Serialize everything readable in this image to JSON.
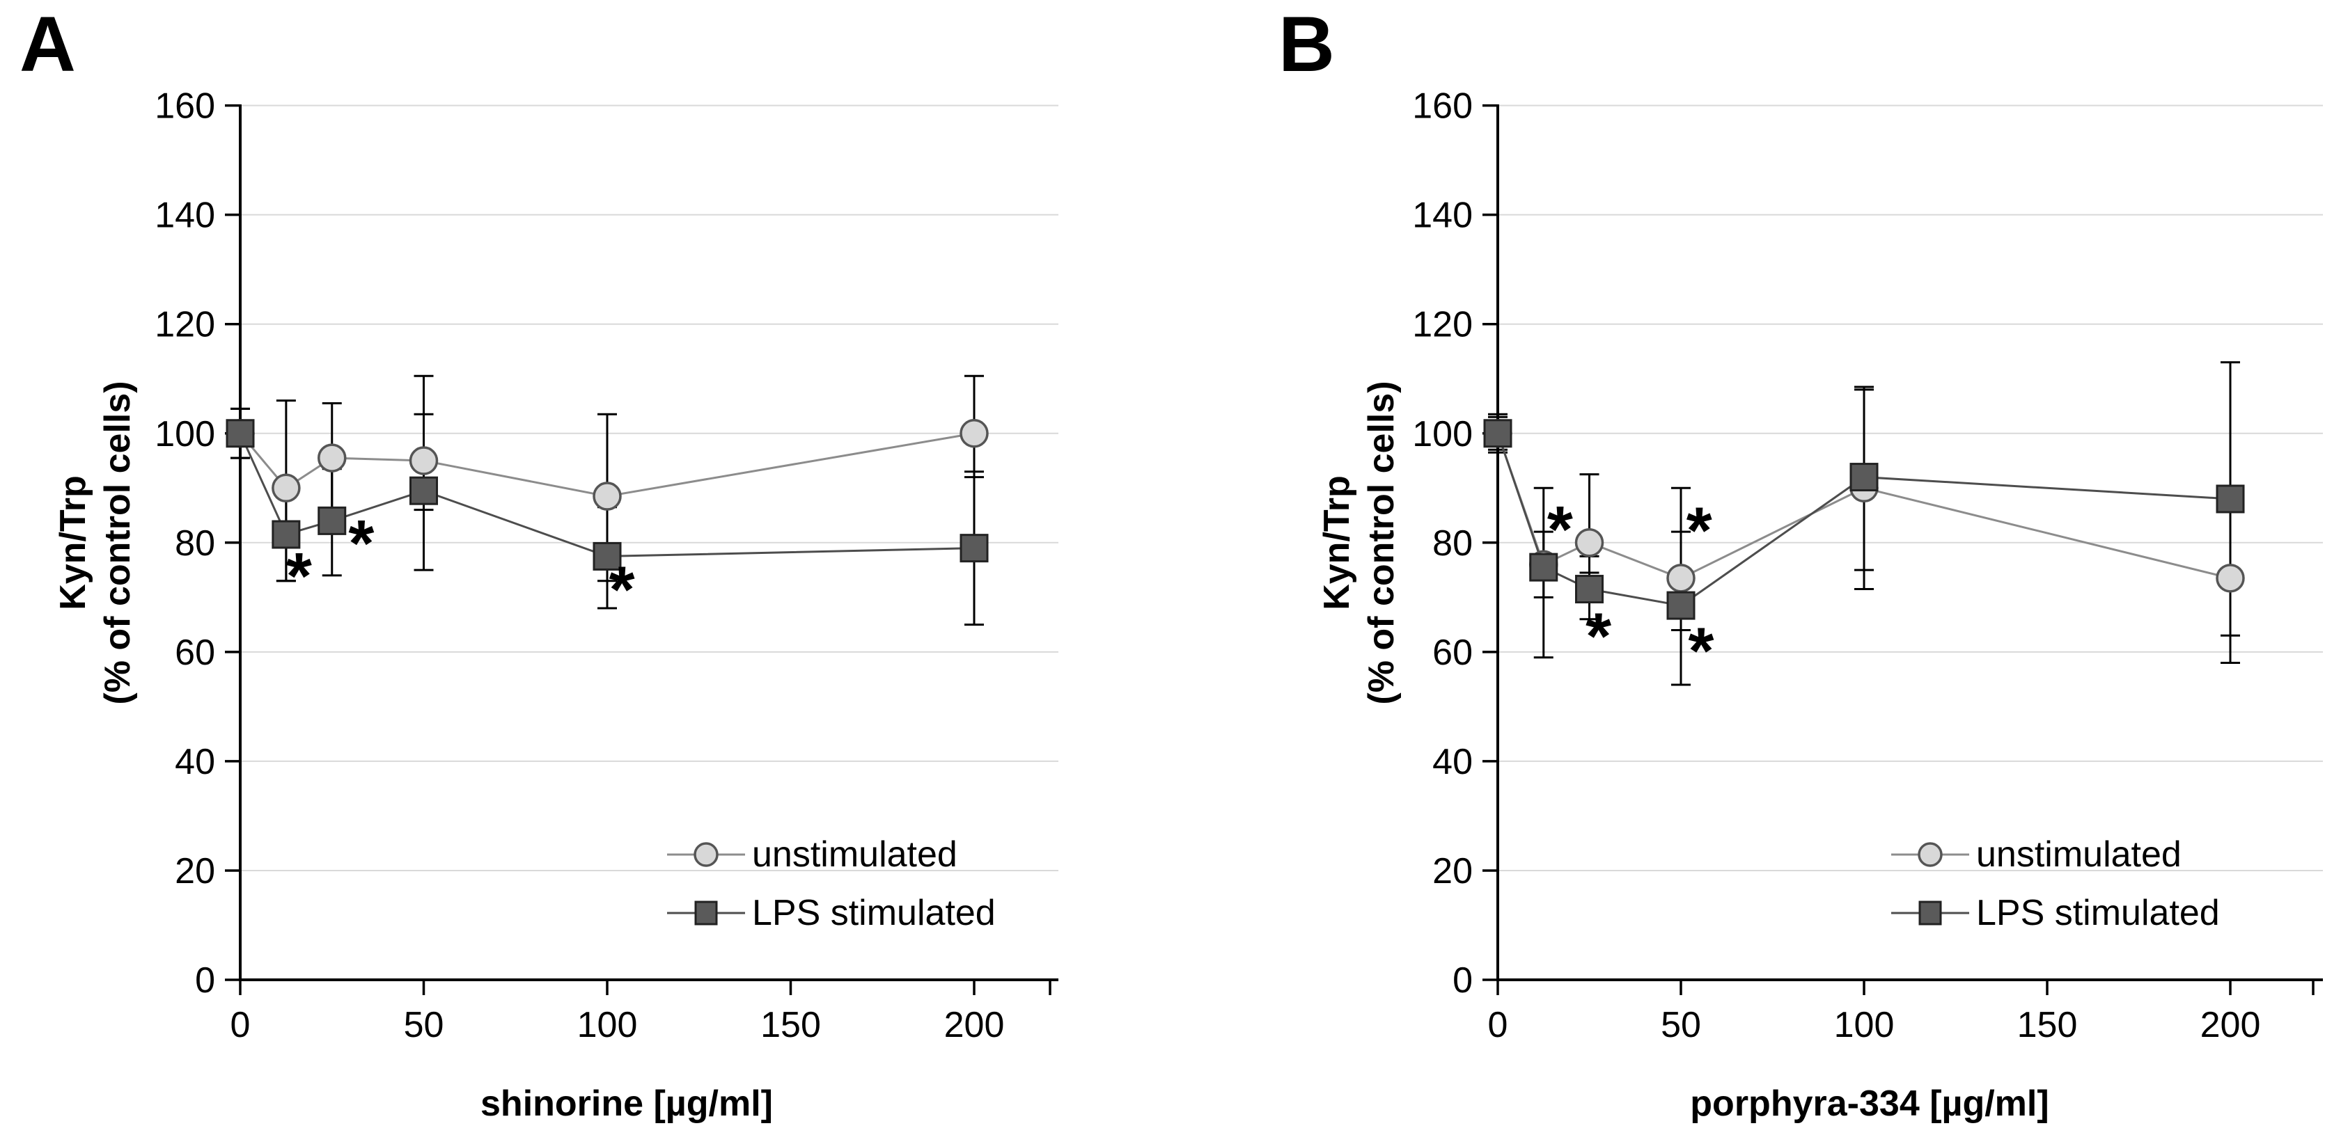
{
  "figure": {
    "background": "#ffffff",
    "colors": {
      "grid": "#d9d9d9",
      "axis": "#000000",
      "error_bar": "#000000",
      "unstimulated_fill": "#d8d8d8",
      "unstimulated_stroke": "#555555",
      "unstimulated_line": "#8c8c8c",
      "lps_fill": "#5a5a5a",
      "lps_stroke": "#222222",
      "lps_line": "#4d4d4d",
      "text": "#000000"
    },
    "panels": [
      {
        "label": "A",
        "y_axis_title_line1": "Kyn/Trp",
        "y_axis_title_line2": "(% of control cells)",
        "x_axis_title": "shinorine [µg/ml]",
        "legend": [
          {
            "label": "unstimulated",
            "marker": "circle"
          },
          {
            "label": "LPS stimulated",
            "marker": "square"
          }
        ]
      },
      {
        "label": "B",
        "y_axis_title_line1": "Kyn/Trp",
        "y_axis_title_line2": "(% of control cells)",
        "x_axis_title": "porphyra-334 [µg/ml]",
        "legend": [
          {
            "label": "unstimulated",
            "marker": "circle"
          },
          {
            "label": "LPS stimulated",
            "marker": "square"
          }
        ]
      }
    ]
  },
  "chart_data": [
    {
      "type": "line",
      "title": "",
      "xlabel": "shinorine [µg/ml]",
      "ylabel": "Kyn/Trp (% of control cells)",
      "xlim": [
        0,
        220
      ],
      "ylim": [
        0,
        160
      ],
      "x_ticks": [
        0,
        50,
        100,
        150,
        200
      ],
      "y_ticks": [
        0,
        20,
        40,
        60,
        80,
        100,
        120,
        140,
        160
      ],
      "grid": "horizontal",
      "legend_position": "inside-lower-right",
      "x": [
        0,
        12.5,
        25,
        50,
        100,
        200
      ],
      "series": [
        {
          "name": "unstimulated",
          "marker": "circle",
          "values": [
            100,
            90,
            95.5,
            95,
            88.5,
            100
          ],
          "err_up": [
            4.5,
            16,
            10,
            15.5,
            15,
            10.5
          ],
          "err_down": [
            4.5,
            17,
            13,
            9,
            15.5,
            8
          ]
        },
        {
          "name": "LPS stimulated",
          "marker": "square",
          "values": [
            100,
            81.5,
            84,
            89.5,
            77.5,
            79
          ],
          "err_up": [
            4.5,
            8,
            9.5,
            14,
            9,
            14
          ],
          "err_down": [
            4.5,
            8.5,
            10,
            14.5,
            9.5,
            14
          ]
        }
      ],
      "significance": [
        {
          "x": 16,
          "y": 74,
          "text": "*"
        },
        {
          "x": 33,
          "y": 80,
          "text": "*"
        },
        {
          "x": 104,
          "y": 71.5,
          "text": "*"
        }
      ]
    },
    {
      "type": "line",
      "title": "",
      "xlabel": "porphyra-334 [µg/ml]",
      "ylabel": "Kyn/Trp (% of control cells)",
      "xlim": [
        0,
        220
      ],
      "ylim": [
        0,
        160
      ],
      "x_ticks": [
        0,
        50,
        100,
        150,
        200
      ],
      "y_ticks": [
        0,
        20,
        40,
        60,
        80,
        100,
        120,
        140,
        160
      ],
      "grid": "horizontal",
      "legend_position": "inside-lower-right",
      "x": [
        0,
        12.5,
        25,
        50,
        100,
        200
      ],
      "series": [
        {
          "name": "unstimulated",
          "marker": "circle",
          "values": [
            100,
            76,
            80,
            73.5,
            90,
            73.5
          ],
          "err_up": [
            3,
            6,
            12.5,
            16.5,
            18,
            16
          ],
          "err_down": [
            3,
            6,
            5.5,
            9.5,
            18.5,
            15.5
          ]
        },
        {
          "name": "LPS stimulated",
          "marker": "square",
          "values": [
            100,
            75.5,
            71.5,
            68.5,
            92,
            88
          ],
          "err_up": [
            3.5,
            14.5,
            6,
            13.5,
            16.5,
            25
          ],
          "err_down": [
            3.5,
            16.5,
            5.5,
            14.5,
            17,
            25
          ]
        }
      ],
      "significance": [
        {
          "x": 17,
          "y": 82.5,
          "text": "*"
        },
        {
          "x": 27.5,
          "y": 63,
          "text": "*"
        },
        {
          "x": 55,
          "y": 82.3,
          "text": "*"
        },
        {
          "x": 55.5,
          "y": 60.3,
          "text": "*"
        }
      ]
    }
  ]
}
